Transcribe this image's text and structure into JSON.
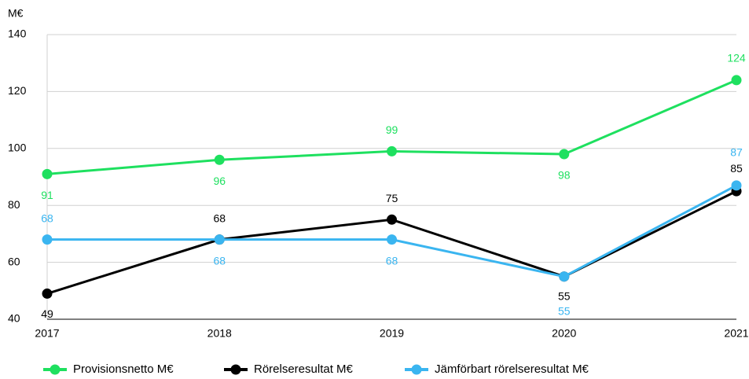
{
  "chart_data": {
    "type": "line",
    "y_label": "M€",
    "categories": [
      "2017",
      "2018",
      "2019",
      "2020",
      "2021"
    ],
    "series": [
      {
        "name": "Provisionsnetto M€",
        "color": "#1ee05f",
        "values": [
          91,
          96,
          99,
          98,
          124
        ]
      },
      {
        "name": "Rörelseresultat M€",
        "color": "#000000",
        "values": [
          49,
          68,
          75,
          55,
          85
        ]
      },
      {
        "name": "Jämförbart rörelseresultat M€",
        "color": "#3ab5f0",
        "values": [
          68,
          68,
          68,
          55,
          87
        ]
      }
    ],
    "ylim": [
      40,
      140
    ],
    "yticks": [
      40,
      60,
      80,
      100,
      120,
      140
    ],
    "grid": true,
    "legend": "bottom"
  }
}
